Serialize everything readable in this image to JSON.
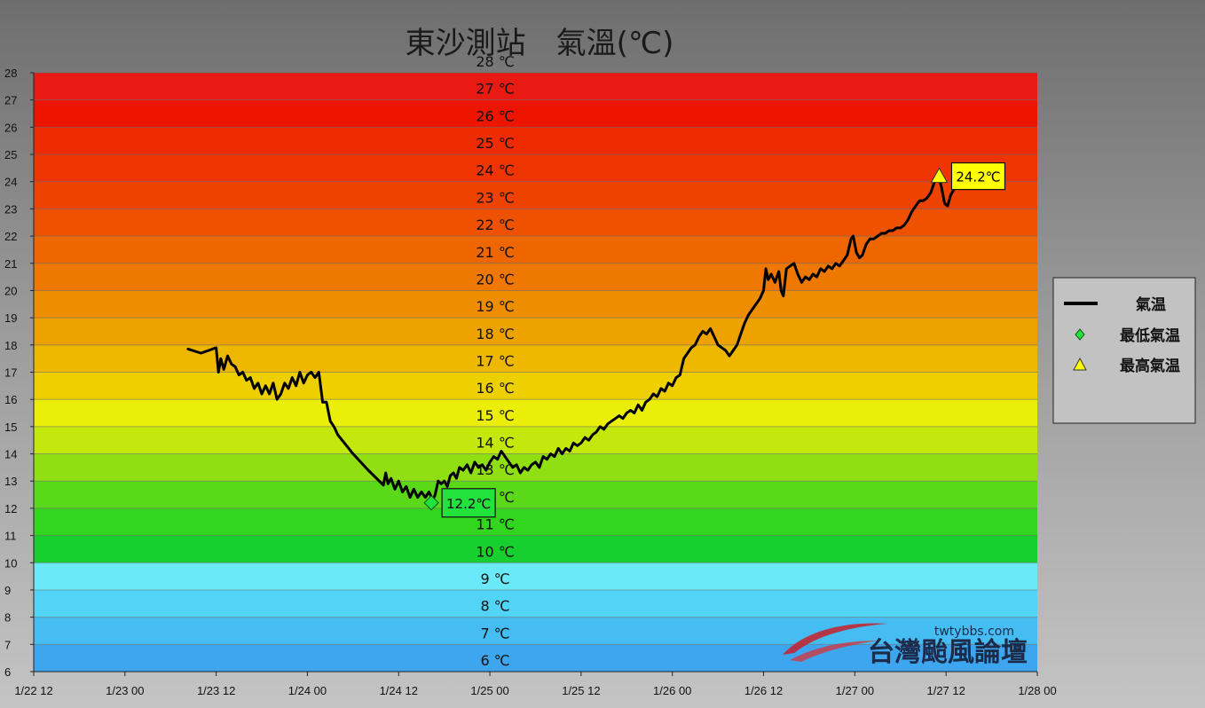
{
  "chart_data": {
    "type": "line",
    "title": "東沙測站　氣溫(℃)",
    "ylim": [
      6,
      28
    ],
    "yticks": [
      6,
      7,
      8,
      9,
      10,
      11,
      12,
      13,
      14,
      15,
      16,
      17,
      18,
      19,
      20,
      21,
      22,
      23,
      24,
      25,
      26,
      27,
      28
    ],
    "xlim_hours": [
      0,
      132
    ],
    "xticks": [
      {
        "hour": 0,
        "label": "1/22 12"
      },
      {
        "hour": 12,
        "label": "1/23 00"
      },
      {
        "hour": 24,
        "label": "1/23 12"
      },
      {
        "hour": 36,
        "label": "1/24 00"
      },
      {
        "hour": 48,
        "label": "1/24 12"
      },
      {
        "hour": 60,
        "label": "1/25 00"
      },
      {
        "hour": 72,
        "label": "1/25 12"
      },
      {
        "hour": 84,
        "label": "1/26 00"
      },
      {
        "hour": 96,
        "label": "1/26 12"
      },
      {
        "hour": 108,
        "label": "1/27 00"
      },
      {
        "hour": 120,
        "label": "1/27 12"
      },
      {
        "hour": 132,
        "label": "1/28 00"
      }
    ],
    "band_labels": [
      "6 ℃",
      "7 ℃",
      "8 ℃",
      "9 ℃",
      "10 ℃",
      "11 ℃",
      "12 ℃",
      "13 ℃",
      "14 ℃",
      "15 ℃",
      "16 ℃",
      "17 ℃",
      "18 ℃",
      "19 ℃",
      "20 ℃",
      "21 ℃",
      "22 ℃",
      "23 ℃",
      "24 ℃",
      "25 ℃",
      "26 ℃",
      "27 ℃",
      "28 ℃"
    ],
    "band_colors": [
      "#3ea6ee",
      "#45bdf2",
      "#52d4f6",
      "#6aeaf8",
      "#17cf2e",
      "#33d61e",
      "#5ad919",
      "#8fdf13",
      "#c4e80b",
      "#eaee08",
      "#eed000",
      "#eeb800",
      "#eea200",
      "#ee8d00",
      "#ee7800",
      "#ee6600",
      "#ee5200",
      "#ee4300",
      "#ee3400",
      "#ee2a00",
      "#ee1500",
      "#e81a14",
      "#e41640"
    ],
    "series": [
      {
        "name": "氣温",
        "color": "#000000",
        "points": [
          [
            20.3,
            17.85
          ],
          [
            22,
            17.7
          ],
          [
            23,
            17.8
          ],
          [
            24,
            17.9
          ],
          [
            24.3,
            17.0
          ],
          [
            24.6,
            17.5
          ],
          [
            25,
            17.1
          ],
          [
            25.5,
            17.6
          ],
          [
            26,
            17.3
          ],
          [
            26.5,
            17.2
          ],
          [
            27,
            16.9
          ],
          [
            27.5,
            17.0
          ],
          [
            28,
            16.7
          ],
          [
            28.5,
            16.8
          ],
          [
            29,
            16.4
          ],
          [
            29.5,
            16.6
          ],
          [
            30,
            16.2
          ],
          [
            30.5,
            16.5
          ],
          [
            31,
            16.2
          ],
          [
            31.5,
            16.6
          ],
          [
            32,
            16.0
          ],
          [
            32.5,
            16.2
          ],
          [
            33,
            16.6
          ],
          [
            33.5,
            16.4
          ],
          [
            34,
            16.8
          ],
          [
            34.5,
            16.5
          ],
          [
            35,
            17.0
          ],
          [
            35.5,
            16.6
          ],
          [
            36,
            16.9
          ],
          [
            36.5,
            17.0
          ],
          [
            37,
            16.8
          ],
          [
            37.5,
            17.0
          ],
          [
            38,
            15.9
          ],
          [
            38.5,
            15.9
          ],
          [
            39,
            15.2
          ],
          [
            39.5,
            15.0
          ],
          [
            40,
            14.7
          ],
          [
            42,
            14.0
          ],
          [
            44,
            13.4
          ],
          [
            46,
            12.85
          ],
          [
            46.3,
            13.3
          ],
          [
            46.6,
            12.9
          ],
          [
            47,
            13.1
          ],
          [
            47.5,
            12.7
          ],
          [
            48,
            13.0
          ],
          [
            48.5,
            12.6
          ],
          [
            49,
            12.8
          ],
          [
            49.5,
            12.4
          ],
          [
            50,
            12.7
          ],
          [
            50.5,
            12.4
          ],
          [
            51,
            12.6
          ],
          [
            51.5,
            12.4
          ],
          [
            52,
            12.6
          ],
          [
            52.5,
            12.3
          ],
          [
            52.8,
            12.5
          ],
          [
            53.2,
            13.0
          ],
          [
            53.6,
            12.9
          ],
          [
            54,
            13.0
          ],
          [
            54.4,
            12.8
          ],
          [
            54.8,
            13.2
          ],
          [
            55.2,
            13.3
          ],
          [
            55.6,
            13.1
          ],
          [
            56,
            13.5
          ],
          [
            56.5,
            13.4
          ],
          [
            57,
            13.6
          ],
          [
            57.5,
            13.3
          ],
          [
            58,
            13.7
          ],
          [
            58.5,
            13.5
          ],
          [
            59,
            13.6
          ],
          [
            59.5,
            13.4
          ],
          [
            60,
            13.7
          ],
          [
            60.5,
            13.9
          ],
          [
            61,
            13.8
          ],
          [
            61.5,
            14.1
          ],
          [
            62,
            13.9
          ],
          [
            62.5,
            13.7
          ],
          [
            63,
            13.5
          ],
          [
            63.5,
            13.6
          ],
          [
            64,
            13.3
          ],
          [
            64.5,
            13.5
          ],
          [
            65,
            13.4
          ],
          [
            65.5,
            13.6
          ],
          [
            66,
            13.7
          ],
          [
            66.5,
            13.5
          ],
          [
            67,
            13.9
          ],
          [
            67.5,
            13.8
          ],
          [
            68,
            14.0
          ],
          [
            68.5,
            13.9
          ],
          [
            69,
            14.2
          ],
          [
            69.5,
            14.0
          ],
          [
            70,
            14.2
          ],
          [
            70.5,
            14.1
          ],
          [
            71,
            14.4
          ],
          [
            71.5,
            14.3
          ],
          [
            72,
            14.4
          ],
          [
            72.5,
            14.6
          ],
          [
            73,
            14.5
          ],
          [
            73.5,
            14.7
          ],
          [
            74,
            14.8
          ],
          [
            74.5,
            15.0
          ],
          [
            75,
            14.9
          ],
          [
            75.5,
            15.1
          ],
          [
            76,
            15.2
          ],
          [
            76.5,
            15.3
          ],
          [
            77,
            15.4
          ],
          [
            77.5,
            15.3
          ],
          [
            78,
            15.5
          ],
          [
            78.5,
            15.6
          ],
          [
            79,
            15.5
          ],
          [
            79.5,
            15.8
          ],
          [
            80,
            15.6
          ],
          [
            80.5,
            15.9
          ],
          [
            81,
            16.0
          ],
          [
            81.5,
            16.2
          ],
          [
            82,
            16.1
          ],
          [
            82.5,
            16.4
          ],
          [
            83,
            16.3
          ],
          [
            83.5,
            16.6
          ],
          [
            84,
            16.5
          ],
          [
            84.5,
            16.8
          ],
          [
            85,
            16.9
          ],
          [
            85.5,
            17.5
          ],
          [
            86,
            17.7
          ],
          [
            86.5,
            17.9
          ],
          [
            87,
            18.0
          ],
          [
            87.5,
            18.3
          ],
          [
            88,
            18.5
          ],
          [
            88.5,
            18.4
          ],
          [
            89,
            18.6
          ],
          [
            89.5,
            18.3
          ],
          [
            90,
            18.0
          ],
          [
            90.5,
            17.9
          ],
          [
            91,
            17.8
          ],
          [
            91.5,
            17.6
          ],
          [
            92,
            17.8
          ],
          [
            92.5,
            18.0
          ],
          [
            93,
            18.4
          ],
          [
            93.5,
            18.8
          ],
          [
            94,
            19.1
          ],
          [
            94.5,
            19.3
          ],
          [
            95,
            19.5
          ],
          [
            95.5,
            19.7
          ],
          [
            96,
            20.0
          ],
          [
            96.3,
            20.8
          ],
          [
            96.6,
            20.4
          ],
          [
            97,
            20.6
          ],
          [
            97.5,
            20.3
          ],
          [
            98,
            20.7
          ],
          [
            98.3,
            20.0
          ],
          [
            98.6,
            19.8
          ],
          [
            99,
            20.8
          ],
          [
            99.5,
            20.9
          ],
          [
            100,
            21.0
          ],
          [
            100.5,
            20.6
          ],
          [
            101,
            20.3
          ],
          [
            101.5,
            20.5
          ],
          [
            102,
            20.4
          ],
          [
            102.5,
            20.6
          ],
          [
            103,
            20.5
          ],
          [
            103.5,
            20.8
          ],
          [
            104,
            20.7
          ],
          [
            104.5,
            20.9
          ],
          [
            105,
            20.8
          ],
          [
            105.5,
            21.0
          ],
          [
            106,
            20.9
          ],
          [
            106.5,
            21.1
          ],
          [
            107,
            21.3
          ],
          [
            107.5,
            21.9
          ],
          [
            107.8,
            22.0
          ],
          [
            108.2,
            21.4
          ],
          [
            108.6,
            21.2
          ],
          [
            109,
            21.3
          ],
          [
            109.5,
            21.7
          ],
          [
            110,
            21.9
          ],
          [
            110.5,
            21.9
          ],
          [
            111,
            22.0
          ],
          [
            111.5,
            22.1
          ],
          [
            112,
            22.1
          ],
          [
            112.5,
            22.2
          ],
          [
            113,
            22.2
          ],
          [
            113.5,
            22.3
          ],
          [
            114,
            22.3
          ],
          [
            114.5,
            22.4
          ],
          [
            115,
            22.6
          ],
          [
            115.5,
            22.9
          ],
          [
            116,
            23.1
          ],
          [
            116.5,
            23.3
          ],
          [
            117,
            23.3
          ],
          [
            117.5,
            23.4
          ],
          [
            118,
            23.6
          ],
          [
            118.5,
            24.0
          ],
          [
            119,
            24.2
          ],
          [
            119.4,
            23.8
          ],
          [
            119.8,
            23.2
          ],
          [
            120.2,
            23.1
          ],
          [
            120.6,
            23.5
          ],
          [
            121,
            23.7
          ],
          [
            121.4,
            23.9
          ],
          [
            121.6,
            24.0
          ]
        ]
      }
    ],
    "min_marker": {
      "hour": 52.3,
      "value": 12.2,
      "label": "12.2℃",
      "color": "#22e33b"
    },
    "max_marker": {
      "hour": 119.1,
      "value": 24.2,
      "label": "24.2℃",
      "color": "#ffff00"
    },
    "legend": {
      "position": "right",
      "items": [
        {
          "label": "氣温",
          "symbol": "line"
        },
        {
          "label": "最低氣温",
          "symbol": "diamond"
        },
        {
          "label": "最高氣温",
          "symbol": "triangle"
        }
      ]
    },
    "grid": true
  },
  "watermark": {
    "site": "twtybbs.com",
    "name": "台灣颱風論壇"
  }
}
